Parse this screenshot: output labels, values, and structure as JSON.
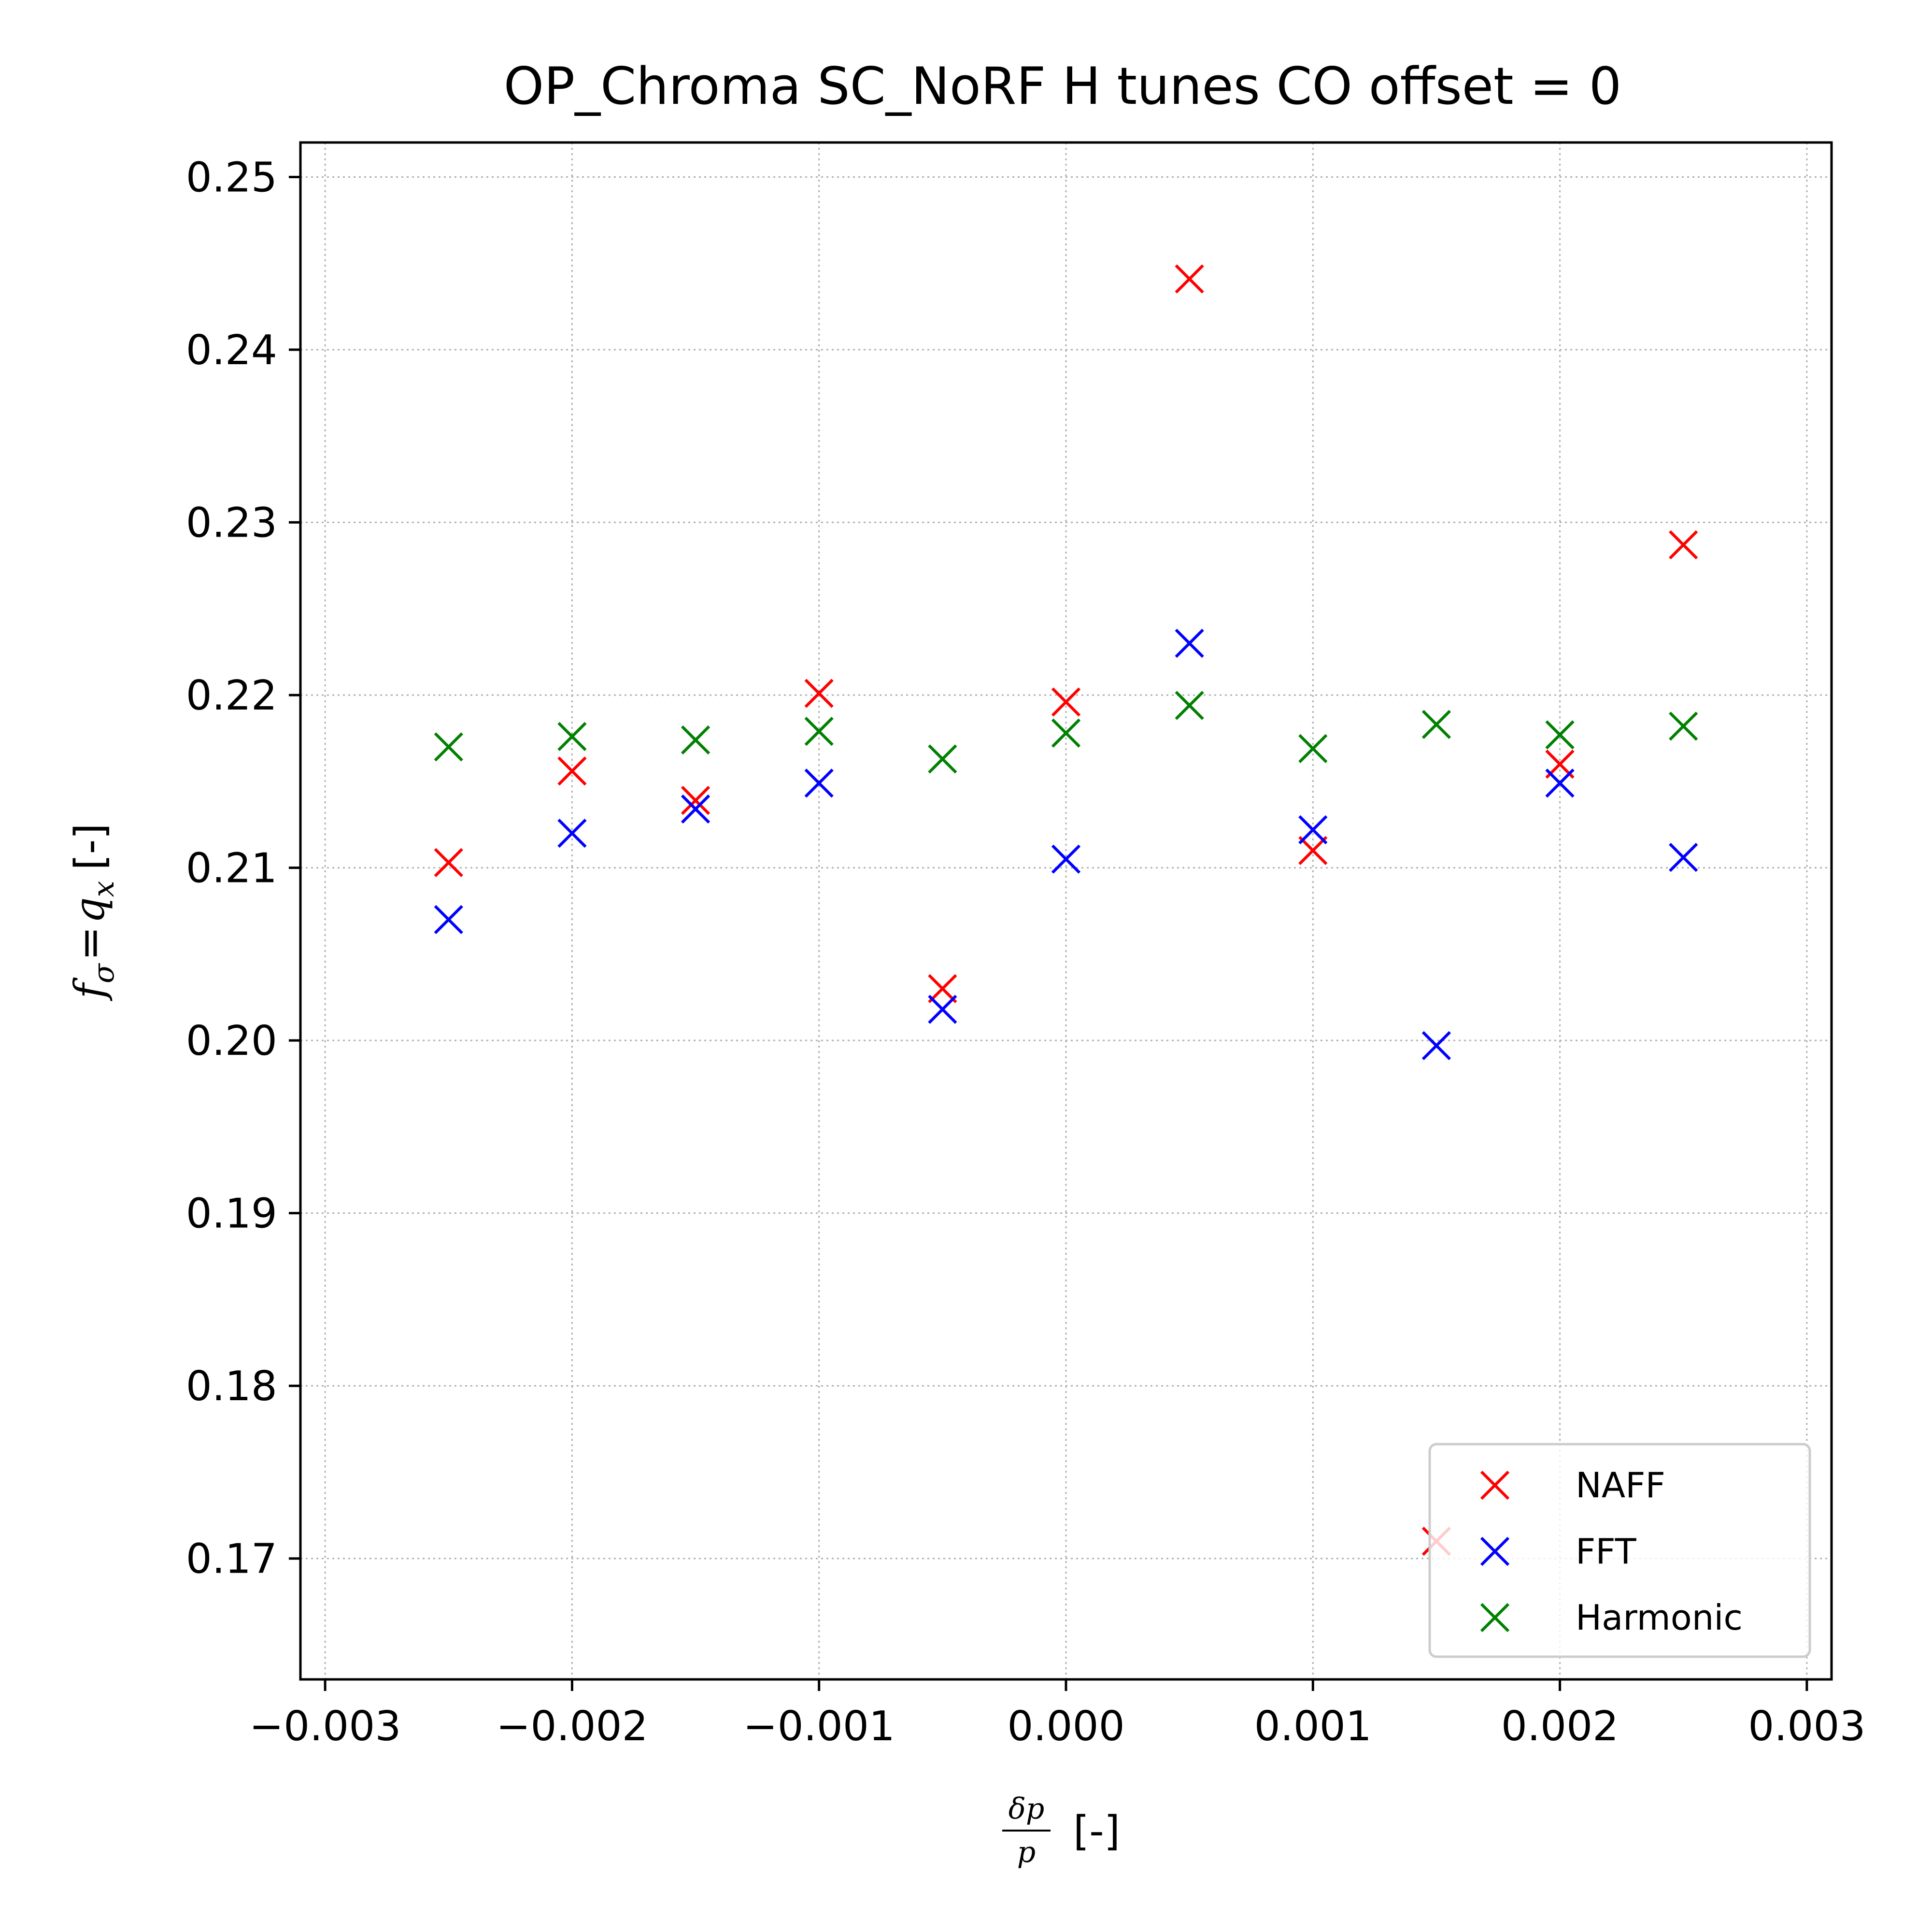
{
  "chart_data": {
    "type": "scatter",
    "title": "OP_Chroma SC_NoRF H tunes CO offset = 0",
    "xlabel": {
      "frac_numerator": "δp",
      "frac_denominator": "p",
      "suffix": "[-]"
    },
    "ylabel": {
      "f": "f",
      "sub_sigma": "σ",
      "equals": "=",
      "q": "q",
      "sub_x": "x",
      "suffix": "[-]"
    },
    "xlim": [
      -0.0031,
      0.0031
    ],
    "ylim": [
      0.163,
      0.252
    ],
    "x_ticks": [
      -0.003,
      -0.002,
      -0.001,
      0.0,
      0.001,
      0.002,
      0.003
    ],
    "x_tick_labels": [
      "−0.003",
      "−0.002",
      "−0.001",
      "0.000",
      "0.001",
      "0.002",
      "0.003"
    ],
    "y_ticks": [
      0.17,
      0.18,
      0.19,
      0.2,
      0.21,
      0.22,
      0.23,
      0.24,
      0.25
    ],
    "y_tick_labels": [
      "0.17",
      "0.18",
      "0.19",
      "0.20",
      "0.21",
      "0.22",
      "0.23",
      "0.24",
      "0.25"
    ],
    "grid": true,
    "legend_position": "bottom-right",
    "marker": "x",
    "series": [
      {
        "name": "NAFF",
        "color": "#ff0000",
        "points": [
          [
            -0.0025,
            0.2103
          ],
          [
            -0.002,
            0.2156
          ],
          [
            -0.0015,
            0.2139
          ],
          [
            -0.001,
            0.2201
          ],
          [
            -0.0005,
            0.203
          ],
          [
            0.0,
            0.2196
          ],
          [
            0.0005,
            0.2441
          ],
          [
            0.001,
            0.211
          ],
          [
            0.0015,
            0.171
          ],
          [
            0.002,
            0.216
          ],
          [
            0.0025,
            0.2287
          ]
        ]
      },
      {
        "name": "FFT",
        "color": "#0000ff",
        "points": [
          [
            -0.0025,
            0.207
          ],
          [
            -0.002,
            0.212
          ],
          [
            -0.0015,
            0.2134
          ],
          [
            -0.001,
            0.2149
          ],
          [
            -0.0005,
            0.2018
          ],
          [
            0.0,
            0.2105
          ],
          [
            0.0005,
            0.223
          ],
          [
            0.001,
            0.2122
          ],
          [
            0.0015,
            0.1997
          ],
          [
            0.002,
            0.2149
          ],
          [
            0.0025,
            0.2106
          ]
        ]
      },
      {
        "name": "Harmonic",
        "color": "#008000",
        "points": [
          [
            -0.0025,
            0.217
          ],
          [
            -0.002,
            0.2176
          ],
          [
            -0.0015,
            0.2174
          ],
          [
            -0.001,
            0.2179
          ],
          [
            -0.0005,
            0.2163
          ],
          [
            0.0,
            0.2178
          ],
          [
            0.0005,
            0.2194
          ],
          [
            0.001,
            0.2169
          ],
          [
            0.0015,
            0.2183
          ],
          [
            0.002,
            0.2177
          ],
          [
            0.0025,
            0.2182
          ]
        ]
      }
    ]
  }
}
